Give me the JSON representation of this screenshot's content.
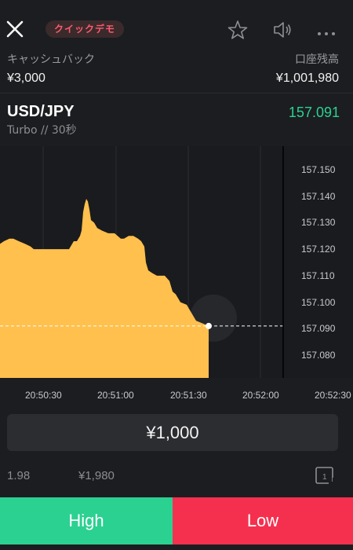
{
  "header": {
    "demo_badge": "クイックデモ",
    "icons": [
      "close-icon",
      "star-icon",
      "speaker-icon",
      "more-dots-icon"
    ]
  },
  "account": {
    "cashback_label": "キャッシュバック",
    "cashback_value": "¥3,000",
    "balance_label": "口座残高",
    "balance_value": "¥1,001,980"
  },
  "instrument": {
    "pair": "USD/JPY",
    "mode": "Turbo // 30秒",
    "price": "157.091",
    "price_color": "#2bd191"
  },
  "chart_data": {
    "type": "area",
    "yticks": [
      "157.150",
      "157.140",
      "157.130",
      "157.120",
      "157.110",
      "157.100",
      "157.090",
      "157.080"
    ],
    "xticks": [
      "20:50:30",
      "20:51:00",
      "20:51:30",
      "20:52:00",
      "20:52:30"
    ],
    "ylim": [
      157.075,
      157.155
    ],
    "current_price": 157.091,
    "fill_color": "#ffc04d",
    "series": [
      {
        "values": [
          [
            0,
            157.122
          ],
          [
            5,
            157.123
          ],
          [
            12,
            157.124
          ],
          [
            17,
            157.124
          ],
          [
            24,
            157.123
          ],
          [
            32,
            157.122
          ],
          [
            39,
            157.121
          ],
          [
            43,
            157.12
          ],
          [
            50,
            157.12
          ],
          [
            58,
            157.12
          ],
          [
            66,
            157.12
          ],
          [
            73,
            157.12
          ],
          [
            80,
            157.12
          ],
          [
            88,
            157.12
          ],
          [
            94,
            157.123
          ],
          [
            98,
            157.123
          ],
          [
            102,
            157.125
          ],
          [
            104,
            157.127
          ],
          [
            106,
            157.134
          ],
          [
            108,
            157.137
          ],
          [
            110,
            157.139
          ],
          [
            112,
            157.138
          ],
          [
            114,
            157.135
          ],
          [
            116,
            157.131
          ],
          [
            120,
            157.13
          ],
          [
            124,
            157.128
          ],
          [
            130,
            157.127
          ],
          [
            138,
            157.126
          ],
          [
            146,
            157.126
          ],
          [
            154,
            157.124
          ],
          [
            158,
            157.124
          ],
          [
            164,
            157.125
          ],
          [
            170,
            157.125
          ],
          [
            176,
            157.124
          ],
          [
            180,
            157.123
          ],
          [
            184,
            157.121
          ],
          [
            186,
            157.115
          ],
          [
            189,
            157.112
          ],
          [
            194,
            157.111
          ],
          [
            200,
            157.11
          ],
          [
            210,
            157.11
          ],
          [
            216,
            157.108
          ],
          [
            220,
            157.104
          ],
          [
            224,
            157.103
          ],
          [
            230,
            157.1
          ],
          [
            238,
            157.099
          ],
          [
            244,
            157.096
          ],
          [
            250,
            157.093
          ],
          [
            258,
            157.092
          ],
          [
            266,
            157.091
          ]
        ]
      }
    ]
  },
  "trade": {
    "amount": "¥1,000",
    "payout_rate": "1.98",
    "payout_amount": "¥1,980",
    "multiplier_label": "1",
    "high_label": "High",
    "low_label": "Low"
  }
}
